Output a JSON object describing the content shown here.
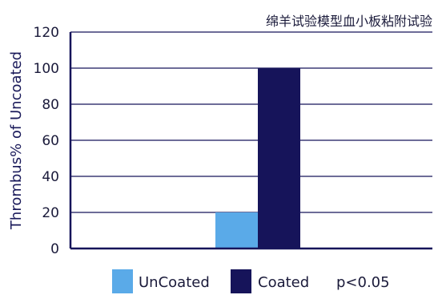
{
  "chart_data": {
    "type": "bar",
    "title": "绵羊试验模型血小板粘附试验",
    "ylabel": "Thrombus% of Uncoated",
    "xlabel": "",
    "ylim": [
      0,
      120
    ],
    "yticks": [
      0,
      20,
      40,
      60,
      80,
      100,
      120
    ],
    "grid": true,
    "legend_position": "bottom",
    "series": [
      {
        "name": "UnCoated",
        "values": [
          20
        ],
        "color": "#5aaae8"
      },
      {
        "name": "Coated",
        "values": [
          100
        ],
        "color": "#16145a"
      }
    ],
    "annotation": "p<0.05"
  }
}
